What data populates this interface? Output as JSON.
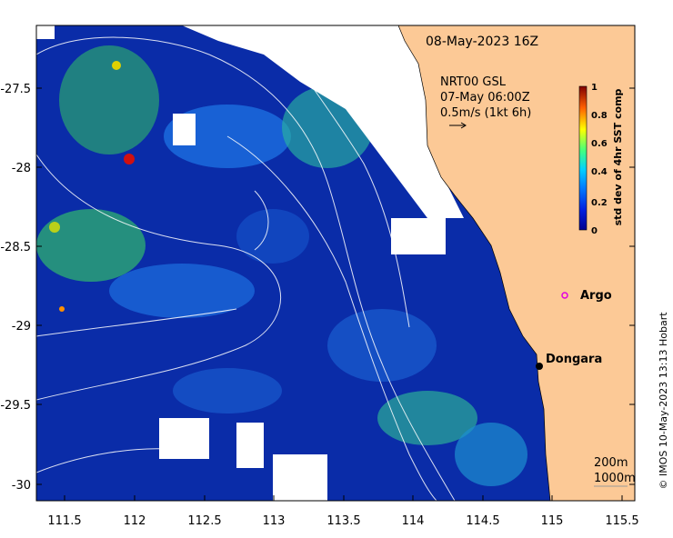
{
  "title": "08-May-2023 16Z",
  "current_info": {
    "line1": "NRT00 GSL",
    "line2": "07-May 06:00Z",
    "line3": "0.5m/s (1kt 6h)"
  },
  "colorbar": {
    "label": "std dev of 4hr SST comp",
    "ticks": [
      "0",
      "0.2",
      "0.4",
      "0.6",
      "0.8",
      "1"
    ],
    "range": [
      0,
      1
    ],
    "colors": [
      "#00008f",
      "#0040ff",
      "#00bfff",
      "#40ff80",
      "#ffff00",
      "#ff8000",
      "#ff0000",
      "#800000"
    ]
  },
  "places": [
    {
      "name": "Argo",
      "marker": "magenta-circle",
      "lon": 115.05,
      "lat": -28.8
    },
    {
      "name": "Dongara",
      "marker": "black-dot",
      "lon": 114.93,
      "lat": -29.25
    }
  ],
  "contour_legend": {
    "line1": "200m",
    "line2": "1000m"
  },
  "x_ticks": [
    "111.5",
    "112",
    "112.5",
    "113",
    "113.5",
    "114",
    "114.5",
    "115",
    "115.5"
  ],
  "y_ticks": [
    "-27.5",
    "-28",
    "-28.5",
    "-29",
    "-29.5",
    "-30"
  ],
  "x_range": [
    111.3,
    115.6
  ],
  "y_range": [
    -30.1,
    -27.05
  ],
  "credit": "© IMOS 10-May-2023 13:13 Hobart",
  "map_colors": {
    "land": "#fcc996",
    "ocean_dominant": "#0a2ca8",
    "cloud_gap": "#ffffff"
  }
}
